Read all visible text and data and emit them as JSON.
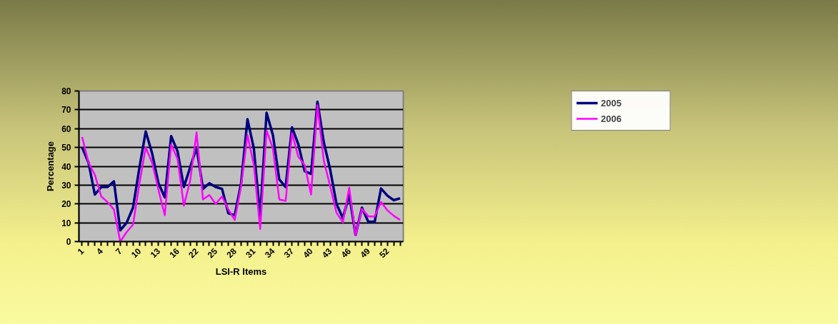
{
  "chart_data": {
    "type": "line",
    "xlabel": "LSI-R Items",
    "ylabel": "Percentage",
    "categories": [
      "1",
      null,
      null,
      "4",
      null,
      null,
      "7",
      null,
      null,
      "10",
      null,
      null,
      "13",
      null,
      null,
      "16",
      null,
      null,
      "22",
      null,
      null,
      "25",
      null,
      null,
      "28",
      null,
      null,
      "31",
      null,
      null,
      "34",
      null,
      null,
      "37",
      null,
      null,
      "40",
      null,
      null,
      "43",
      null,
      null,
      "46",
      null,
      null,
      "49",
      null,
      null,
      "52",
      null,
      null
    ],
    "series": [
      {
        "name": "2005",
        "color": "#000080",
        "values": [
          50,
          42,
          25,
          29,
          29,
          32,
          6,
          10,
          18,
          39,
          58.5,
          47,
          31,
          23.5,
          56,
          48,
          29,
          39.5,
          50,
          28,
          31,
          29,
          28,
          15,
          14,
          31,
          65,
          49.5,
          13,
          68.4,
          56.6,
          33,
          29,
          60.7,
          51.6,
          37.4,
          36,
          74.3,
          52.8,
          38.3,
          20,
          12.4,
          25,
          3.5,
          18,
          10.5,
          10.5,
          28.2,
          24.4,
          22,
          23
        ]
      },
      {
        "name": "2006",
        "color": "#ff00ff",
        "values": [
          55.6,
          42,
          35.5,
          24,
          21,
          17,
          0,
          5,
          9,
          30.5,
          50,
          42,
          27.5,
          14,
          51.6,
          44,
          19,
          32.6,
          58,
          22.4,
          24.7,
          20,
          24,
          17,
          11.5,
          29.5,
          56.6,
          40.8,
          6.7,
          59,
          49.4,
          22.4,
          21.6,
          57.6,
          45,
          40.6,
          25,
          72.4,
          43,
          29.5,
          15.3,
          10.2,
          28.6,
          3.3,
          17.4,
          13.4,
          13.4,
          21,
          16.6,
          13.7,
          11.5
        ]
      }
    ],
    "ylim": [
      0,
      80
    ],
    "yticks": [
      0,
      10,
      20,
      30,
      40,
      50,
      60,
      70,
      80
    ],
    "grid": "y",
    "legend": "top right",
    "marker": "none",
    "line_style": "solid"
  }
}
